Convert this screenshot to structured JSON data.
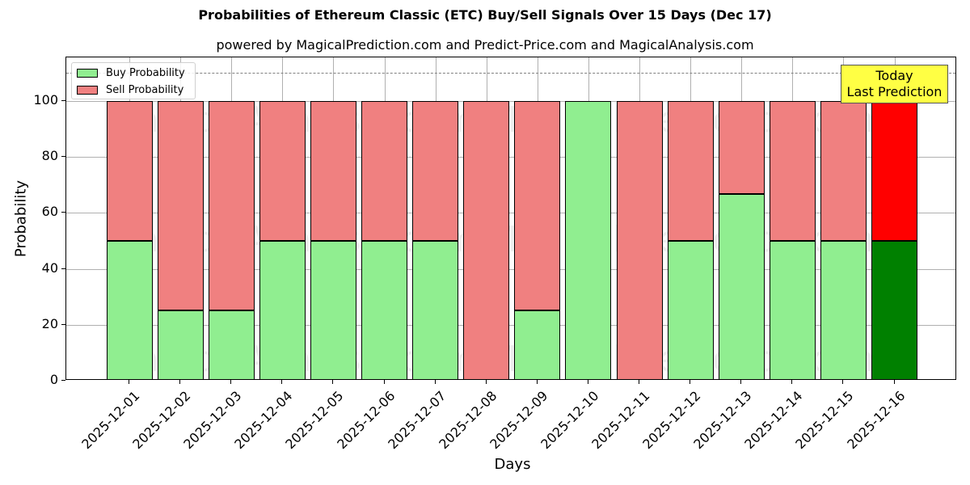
{
  "title": "Probabilities of Ethereum Classic (ETC) Buy/Sell Signals Over 15 Days (Dec 17)",
  "subtitle": "powered by MagicalPrediction.com and Predict-Price.com and MagicalAnalysis.com",
  "legend": {
    "buy_label": "Buy Probability",
    "sell_label": "Sell Probability"
  },
  "annotation": {
    "line1": "Today",
    "line2": "Last Prediction"
  },
  "watermarks": [
    "MagicalAnalysis.com",
    "MagicalPrediction.com"
  ],
  "colors": {
    "buy": "#90ee90",
    "sell": "#f08080",
    "buy_today": "#008000",
    "sell_today": "#ff0000",
    "annotation_bg": "#ffff44"
  },
  "chart_data": {
    "type": "bar",
    "stacked": true,
    "title": "Probabilities of Ethereum Classic (ETC) Buy/Sell Signals Over 15 Days (Dec 17)",
    "subtitle": "powered by MagicalPrediction.com and Predict-Price.com and MagicalAnalysis.com",
    "xlabel": "Days",
    "ylabel": "Probability",
    "ylim": [
      0,
      115.6
    ],
    "yticks": [
      0,
      20,
      40,
      60,
      80,
      100
    ],
    "grid": true,
    "legend_position": "upper left",
    "reference_line": {
      "y": 110,
      "style": "dashed",
      "color": "#808080"
    },
    "categories": [
      "2025-12-01",
      "2025-12-02",
      "2025-12-03",
      "2025-12-04",
      "2025-12-05",
      "2025-12-06",
      "2025-12-07",
      "2025-12-08",
      "2025-12-09",
      "2025-12-10",
      "2025-12-11",
      "2025-12-12",
      "2025-12-13",
      "2025-12-14",
      "2025-12-15",
      "2025-12-16"
    ],
    "series": [
      {
        "name": "Buy Probability",
        "values": [
          50,
          25,
          25,
          50,
          50,
          50,
          50,
          0,
          25,
          100,
          0,
          50,
          66.7,
          50,
          50,
          50
        ]
      },
      {
        "name": "Sell Probability",
        "values": [
          50,
          75,
          75,
          50,
          50,
          50,
          50,
          100,
          75,
          0,
          100,
          50,
          33.3,
          50,
          50,
          50
        ]
      }
    ],
    "highlight": {
      "category": "2025-12-16",
      "label": "Today\nLast Prediction"
    }
  }
}
